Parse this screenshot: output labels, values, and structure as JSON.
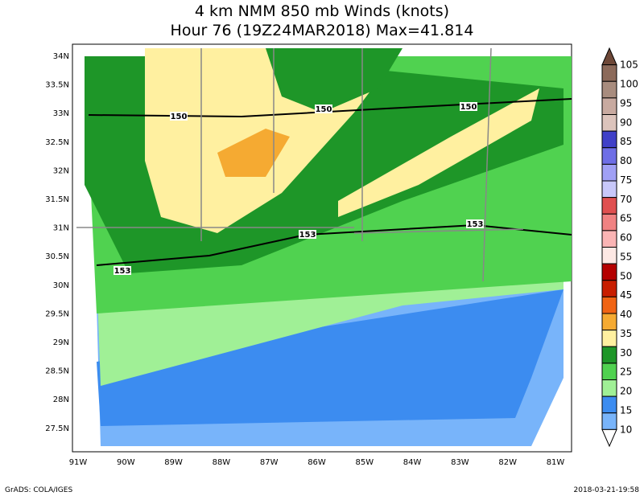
{
  "header": {
    "title": "4 km NMM 850 mb Winds (knots)",
    "subtitle": "Hour 76 (19Z24MAR2018) Max=41.814"
  },
  "map": {
    "lat_labels": [
      "34N",
      "33.5N",
      "33N",
      "32.5N",
      "32N",
      "31.5N",
      "31N",
      "30.5N",
      "30N",
      "29.5N",
      "29N",
      "28.5N",
      "28N",
      "27.5N"
    ],
    "lon_labels": [
      "91W",
      "90W",
      "89W",
      "88W",
      "87W",
      "86W",
      "85W",
      "84W",
      "83W",
      "82W",
      "81W"
    ],
    "contour_labels": [
      "150",
      "150",
      "150",
      "153",
      "153",
      "153"
    ]
  },
  "colorbar": {
    "labels": [
      "105",
      "100",
      "95",
      "90",
      "85",
      "80",
      "75",
      "70",
      "65",
      "60",
      "55",
      "50",
      "45",
      "40",
      "35",
      "30",
      "25",
      "20",
      "15",
      "10"
    ],
    "colors": [
      "#6e4838",
      "#8c6a5a",
      "#a88c7e",
      "#c8aaa0",
      "#dcc4bc",
      "#4040c8",
      "#6e6ee6",
      "#a0a0f5",
      "#c8c8fa",
      "#e05050",
      "#f08282",
      "#fab4b4",
      "#fde8e4",
      "#b40000",
      "#c81e00",
      "#f06414",
      "#f5aa32",
      "#fff0a0",
      "#1e9628",
      "#50d250",
      "#a0f096",
      "#3c8cf0",
      "#78b4fa",
      "#ffffff"
    ]
  },
  "footer": {
    "left": "GrADS: COLA/IGES",
    "right": "2018-03-21-19:58"
  }
}
